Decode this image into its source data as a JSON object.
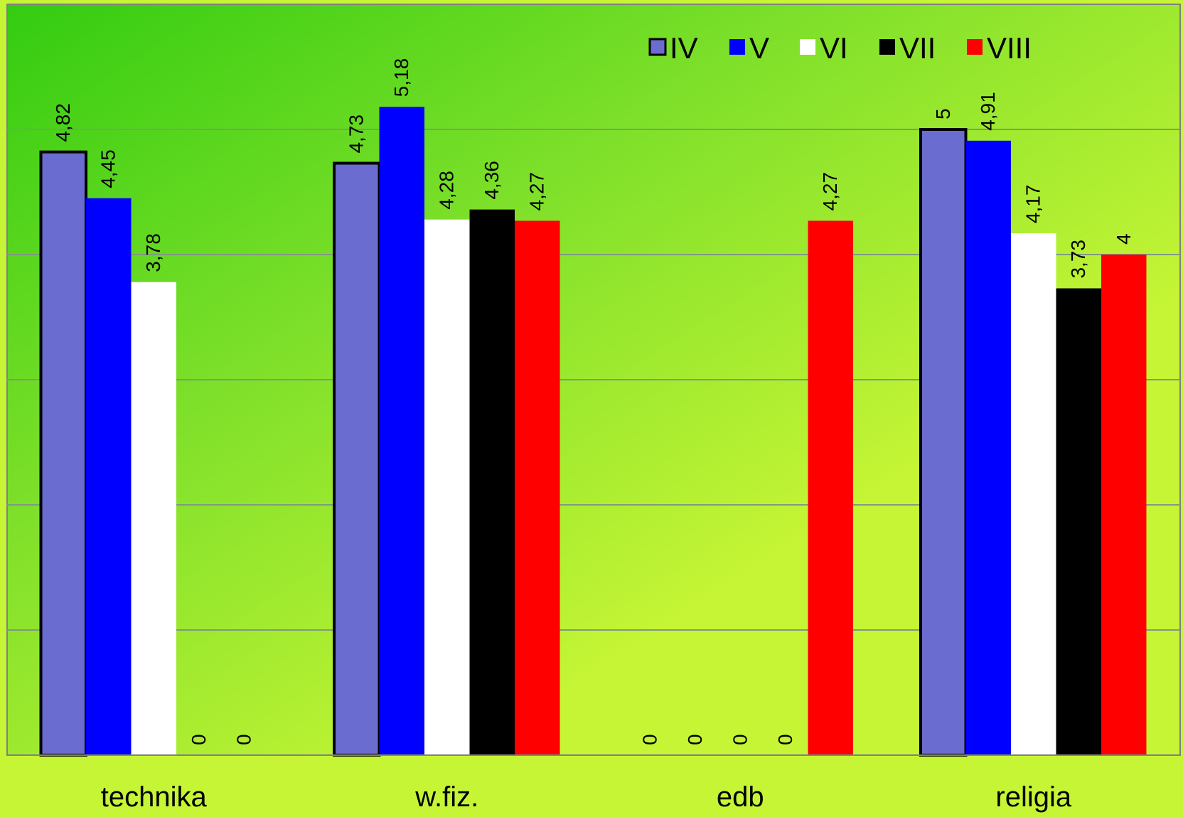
{
  "chart_data": {
    "type": "bar",
    "categories": [
      "technika",
      "w.fiz.",
      "edb",
      "religia"
    ],
    "series": [
      {
        "name": "IV",
        "color": "#6b6ccf",
        "values": [
          4.82,
          4.73,
          0,
          5
        ],
        "labels": [
          "4,82",
          "4,73",
          "0",
          "5"
        ]
      },
      {
        "name": "V",
        "color": "#0000ff",
        "values": [
          4.45,
          5.18,
          0,
          4.91
        ],
        "labels": [
          "4,45",
          "5,18",
          "0",
          "4,91"
        ]
      },
      {
        "name": "VI",
        "color": "#ffffff",
        "values": [
          3.78,
          4.28,
          0,
          4.17
        ],
        "labels": [
          "3,78",
          "4,28",
          "0",
          "4,17"
        ]
      },
      {
        "name": "VII",
        "color": "#000000",
        "values": [
          0,
          4.36,
          0,
          3.73
        ],
        "labels": [
          "0",
          "4,36",
          "0",
          "3,73"
        ]
      },
      {
        "name": "VIII",
        "color": "#ff0000",
        "values": [
          0,
          4.27,
          4.27,
          4
        ],
        "labels": [
          "0",
          "4,27",
          "4,27",
          "4"
        ]
      }
    ],
    "ylim": [
      0,
      6
    ],
    "grid": true,
    "legend": "top-right",
    "background": {
      "top_left": "#33cc11",
      "bottom_right": "#c6f535"
    },
    "gridline_color": "#7f9a7f"
  }
}
